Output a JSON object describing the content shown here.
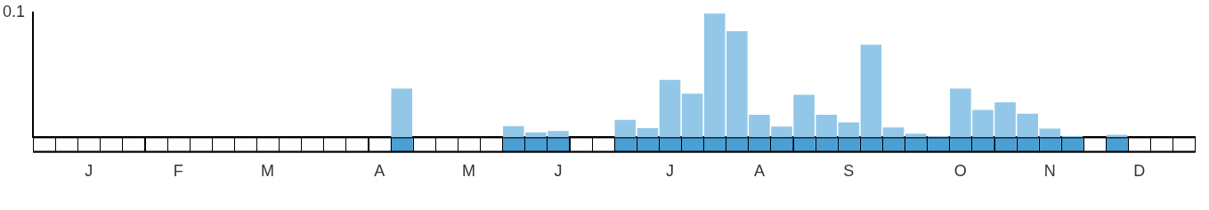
{
  "chart_data": {
    "type": "bar",
    "categories": [
      null,
      null,
      "J",
      null,
      null,
      null,
      "F",
      null,
      null,
      null,
      "M",
      null,
      null,
      null,
      null,
      "A",
      null,
      null,
      null,
      "M",
      null,
      null,
      null,
      "J",
      null,
      null,
      null,
      null,
      "J",
      null,
      null,
      null,
      "A",
      null,
      null,
      null,
      "S",
      null,
      null,
      null,
      null,
      "O",
      null,
      null,
      null,
      "N",
      null,
      null,
      null,
      "D",
      null,
      null
    ],
    "values": [
      0,
      0,
      0,
      0,
      0,
      0,
      0,
      0,
      0,
      0,
      0,
      0,
      0,
      0,
      0,
      0,
      0.039,
      0,
      0,
      0,
      0,
      0.009,
      0.004,
      0.005,
      0,
      0,
      0.014,
      0.0074,
      0.046,
      0.035,
      0.099,
      0.085,
      0.018,
      0.0086,
      0.034,
      0.018,
      0.012,
      0.074,
      0.008,
      0.003,
      0.001,
      0.039,
      0.022,
      0.028,
      0.019,
      0.007,
      0.001,
      0,
      0.002,
      0,
      0,
      0
    ],
    "color": "#93c7e8",
    "ylim": [
      0,
      0.1
    ],
    "yticks": [
      0.1
    ],
    "grid": false
  }
}
